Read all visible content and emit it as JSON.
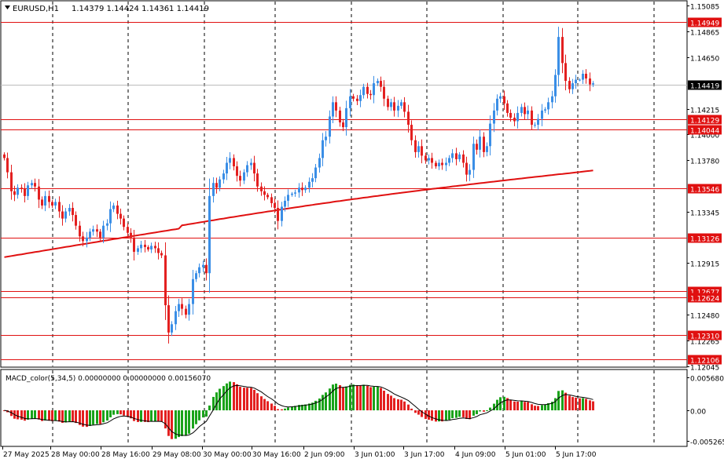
{
  "header": {
    "symbol": "EURUSD,H1",
    "ohlc": "1.14379 1.14424 1.14361 1.14419"
  },
  "macd": {
    "label": "MACD_color(5,34,5) 0.00000000 0.00000000 0.00156070"
  },
  "colors": {
    "bull": "#3a8ee6",
    "bear": "#e32020",
    "level": "#e01010",
    "ma": "#e01010",
    "hist_up": "#1aa31a",
    "hist_down": "#e32020"
  },
  "chart_data": [
    {
      "type": "candlestick",
      "series": [
        {
          "name": "EURUSD,H1"
        }
      ],
      "price_axis": {
        "ticks": [
          1.15085,
          1.14865,
          1.1465,
          1.14215,
          1.14,
          1.1378,
          1.13345,
          1.12915,
          1.1248,
          1.12265,
          1.12045
        ],
        "tick_labels": [
          "1.15085",
          "1.14865",
          "1.14650",
          "1.14215",
          "1.14000",
          "1.13780",
          "1.13345",
          "1.12915",
          "1.12480",
          "1.12265",
          "1.12045"
        ],
        "ylim": [
          1.12045,
          1.15085
        ]
      },
      "current_price": 1.14419,
      "current_price_label": "1.14419",
      "levels": [
        1.14949,
        1.14129,
        1.14044,
        1.13546,
        1.13126,
        1.12677,
        1.12624,
        1.1231,
        1.12106
      ],
      "level_labels": [
        "1.14949",
        "1.14129",
        "1.14044",
        "1.13546",
        "1.13126",
        "1.12677",
        "1.12624",
        "1.12310",
        "1.12106"
      ],
      "time_labels": [
        "27 May 2025",
        "28 May 00:00",
        "28 May 16:00",
        "29 May 08:00",
        "30 May 00:00",
        "30 May 16:00",
        "2 Jun 09:00",
        "3 Jun 01:00",
        "3 Jun 17:00",
        "4 Jun 09:00",
        "5 Jun 01:00",
        "5 Jun 17:00"
      ],
      "close": [
        1.138,
        1.1368,
        1.1352,
        1.1349,
        1.1355,
        1.1354,
        1.1348,
        1.1357,
        1.1359,
        1.1356,
        1.1345,
        1.134,
        1.1348,
        1.1343,
        1.134,
        1.1343,
        1.1335,
        1.1329,
        1.1335,
        1.1338,
        1.1332,
        1.1323,
        1.1314,
        1.131,
        1.1313,
        1.1318,
        1.132,
        1.1318,
        1.1313,
        1.1323,
        1.1325,
        1.1337,
        1.134,
        1.1333,
        1.1329,
        1.1322,
        1.1317,
        1.1313,
        1.1301,
        1.1304,
        1.1307,
        1.1305,
        1.1303,
        1.1306,
        1.1304,
        1.13,
        1.1298,
        1.1256,
        1.1233,
        1.124,
        1.1251,
        1.1257,
        1.1253,
        1.1248,
        1.1257,
        1.1278,
        1.1283,
        1.1288,
        1.129,
        1.1283,
        1.1348,
        1.1359,
        1.1355,
        1.1362,
        1.1367,
        1.1376,
        1.138,
        1.1373,
        1.1365,
        1.1361,
        1.1368,
        1.1374,
        1.1376,
        1.1367,
        1.1356,
        1.1352,
        1.1349,
        1.1347,
        1.1342,
        1.1338,
        1.1327,
        1.1339,
        1.1344,
        1.1349,
        1.135,
        1.1351,
        1.1355,
        1.1353,
        1.1355,
        1.136,
        1.1363,
        1.1372,
        1.138,
        1.1395,
        1.1398,
        1.1415,
        1.1427,
        1.142,
        1.141,
        1.1406,
        1.1422,
        1.1432,
        1.143,
        1.1428,
        1.1433,
        1.144,
        1.1434,
        1.1433,
        1.1443,
        1.1445,
        1.144,
        1.143,
        1.1423,
        1.1427,
        1.142,
        1.1424,
        1.1427,
        1.1419,
        1.1408,
        1.1395,
        1.1385,
        1.139,
        1.1382,
        1.1378,
        1.138,
        1.1376,
        1.1373,
        1.1376,
        1.1374,
        1.1376,
        1.138,
        1.1384,
        1.1379,
        1.1383,
        1.1376,
        1.1366,
        1.137,
        1.1392,
        1.1387,
        1.1398,
        1.1385,
        1.139,
        1.1409,
        1.142,
        1.143,
        1.1432,
        1.1426,
        1.1418,
        1.1414,
        1.1411,
        1.1418,
        1.1423,
        1.1417,
        1.142,
        1.1408,
        1.1408,
        1.1413,
        1.142,
        1.1421,
        1.1427,
        1.1432,
        1.145,
        1.1482,
        1.146,
        1.1445,
        1.1438,
        1.1443,
        1.1446,
        1.1446,
        1.1451,
        1.1447,
        1.1442,
        1.1443
      ]
    },
    {
      "type": "bar",
      "series": [
        {
          "name": "MACD_color(5,34,5)"
        }
      ],
      "axis_ticks": [
        0.00568,
        0.0,
        -0.005265
      ],
      "axis_labels": [
        "0.005680",
        "0.00",
        "-0.005265"
      ],
      "ylim": [
        -0.005265,
        0.00568
      ]
    }
  ]
}
